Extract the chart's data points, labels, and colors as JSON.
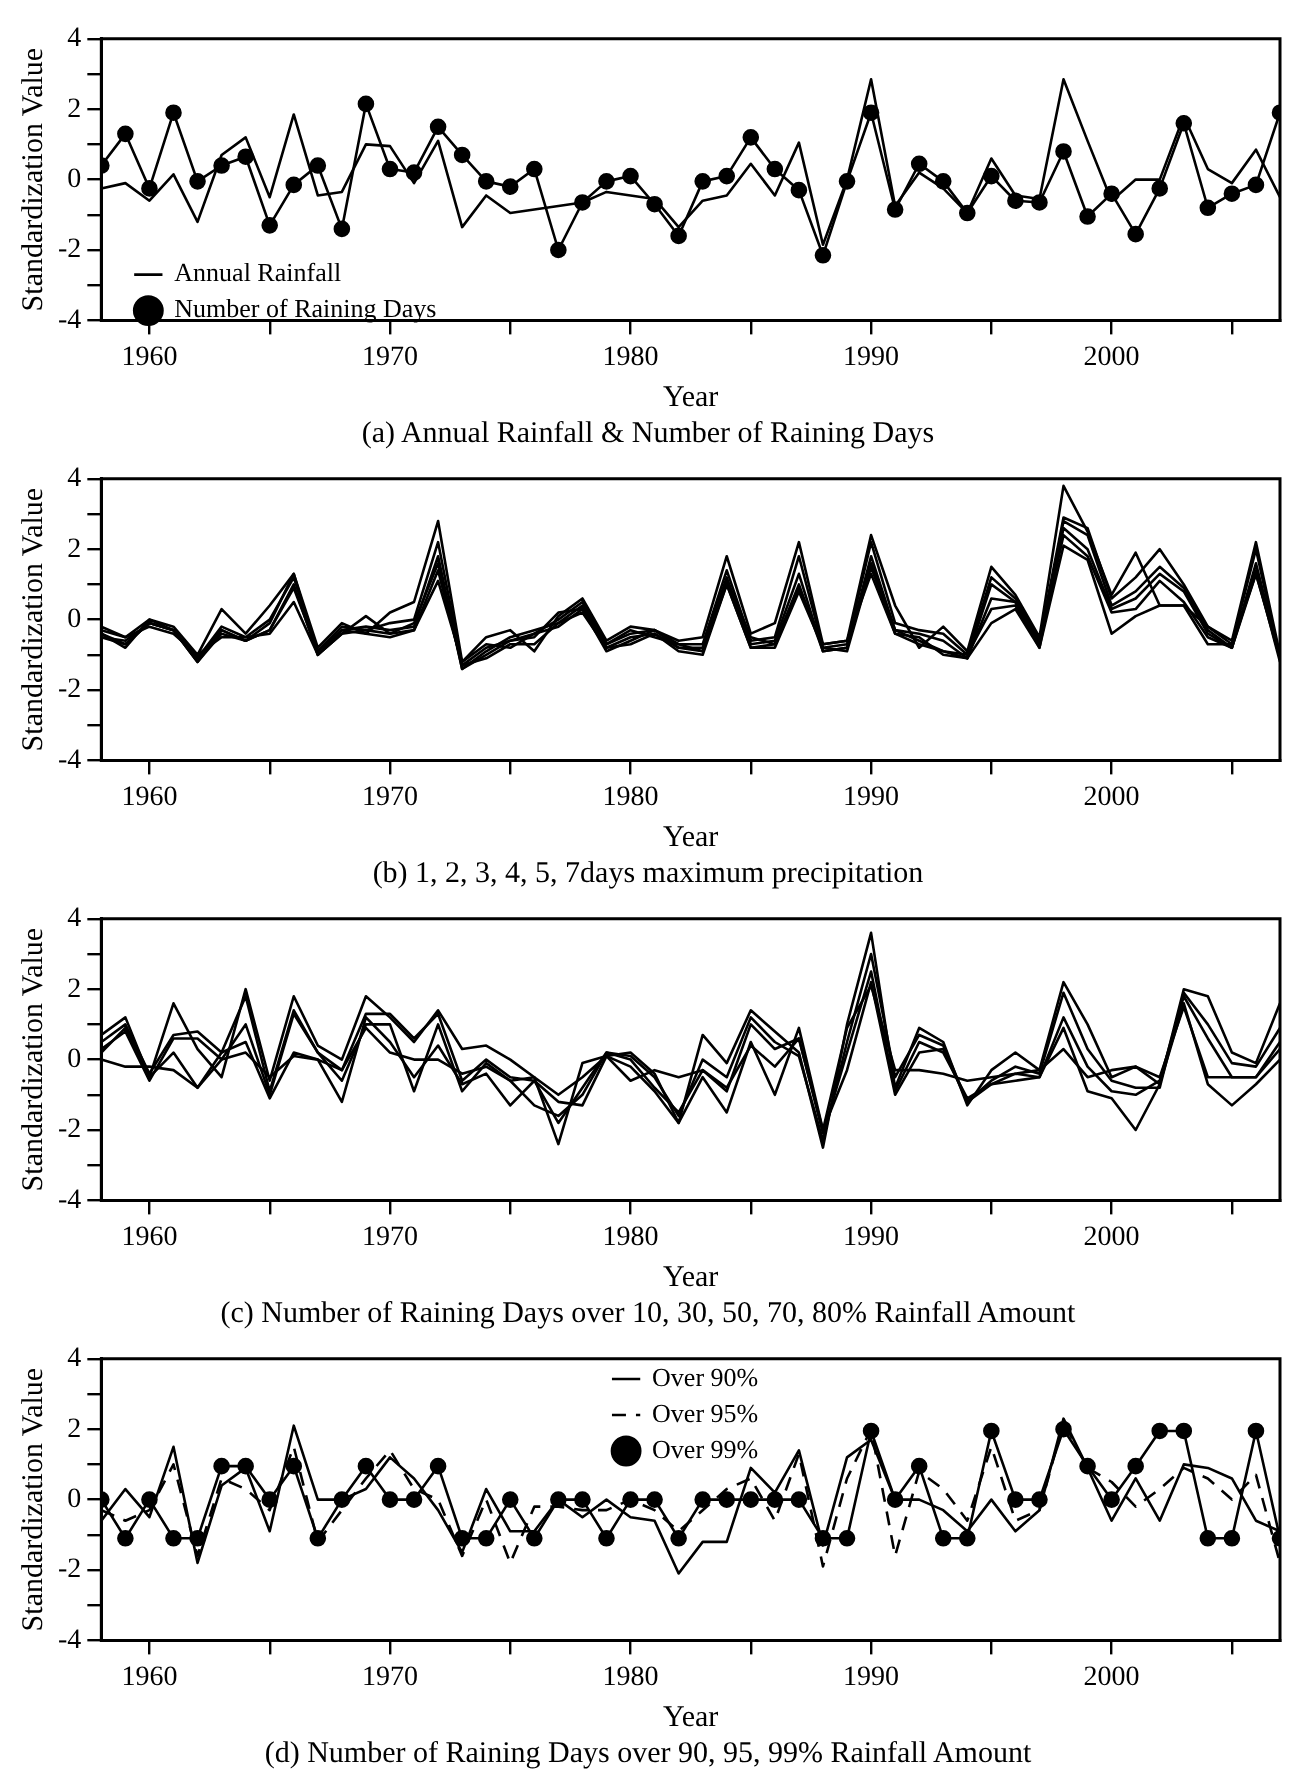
{
  "chart_data": [
    {
      "type": "line",
      "title": "(a) Annual Rainfall & Number of Raining Days",
      "xlabel": "Year",
      "ylabel": "Standardization Value",
      "legend": "bottom left",
      "x": [
        1958,
        1959,
        1960,
        1961,
        1962,
        1963,
        1964,
        1965,
        1966,
        1967,
        1968,
        1969,
        1970,
        1971,
        1972,
        1973,
        1974,
        1975,
        1976,
        1977,
        1978,
        1979,
        1980,
        1981,
        1982,
        1983,
        1984,
        1985,
        1986,
        1987,
        1988,
        1989,
        1990,
        1991,
        1992,
        1993,
        1994,
        1995,
        1996,
        1997,
        1998,
        1999,
        2000,
        2001,
        2002,
        2003,
        2004,
        2005,
        2006,
        2007
      ],
      "xlim": [
        1958,
        2007
      ],
      "xticks": [
        1960,
        {
          "value": 1965,
          "label": null
        },
        1970,
        {
          "value": 1975,
          "label": null
        },
        1980,
        {
          "value": 1985,
          "label": null
        },
        1990,
        {
          "value": 1995,
          "label": null
        },
        2000,
        {
          "value": 2005,
          "label": null
        }
      ],
      "ylim": [
        -4,
        4
      ],
      "yticks": [
        -4,
        {
          "value": -3,
          "label": null
        },
        -2,
        {
          "value": -1,
          "label": null
        },
        0,
        {
          "value": 1,
          "label": null
        },
        2,
        {
          "value": 3,
          "label": null
        },
        4
      ],
      "series": [
        {
          "name": "Annual Rainfall",
          "color": "#000000",
          "marker": "none",
          "line_style": "solid",
          "values": [
            -0.25,
            -0.1,
            -0.6,
            0.15,
            -1.2,
            0.7,
            1.2,
            -0.5,
            1.85,
            -0.45,
            -0.35,
            1.0,
            0.95,
            -0.1,
            1.1,
            -1.35,
            -0.45,
            -0.95,
            -0.85,
            -0.75,
            -0.65,
            -0.35,
            -0.45,
            -0.55,
            -1.35,
            -0.6,
            -0.45,
            0.45,
            -0.45,
            1.05,
            -1.85,
            0.0,
            2.85,
            -0.75,
            0.2,
            -0.25,
            -0.95,
            0.6,
            -0.45,
            -0.55,
            2.85,
            1.1,
            -0.6,
            0.0,
            0.0,
            1.8,
            0.3,
            -0.1,
            0.85,
            -0.5
          ]
        },
        {
          "name": "Number of Raining Days",
          "color": "#000000",
          "marker": "circle",
          "line_style": "solid",
          "values": [
            0.4,
            1.3,
            -0.25,
            1.9,
            -0.05,
            0.4,
            0.65,
            -1.3,
            -0.15,
            0.4,
            -1.4,
            2.15,
            0.3,
            0.2,
            1.5,
            0.7,
            -0.05,
            -0.2,
            0.3,
            -2.0,
            -0.65,
            -0.05,
            0.1,
            -0.7,
            -1.6,
            -0.05,
            0.1,
            1.2,
            0.3,
            -0.3,
            -2.15,
            -0.05,
            1.9,
            -0.85,
            0.45,
            -0.05,
            -0.95,
            0.1,
            -0.6,
            -0.65,
            0.8,
            -1.05,
            -0.4,
            -1.55,
            -0.25,
            1.6,
            -0.8,
            -0.4,
            -0.15,
            1.9
          ]
        }
      ]
    },
    {
      "type": "line",
      "title": "(b) 1, 2, 3, 4, 5, 7days maximum precipitation",
      "xlabel": "Year",
      "ylabel": "Standardization Value",
      "x": [
        1958,
        1959,
        1960,
        1961,
        1962,
        1963,
        1964,
        1965,
        1966,
        1967,
        1968,
        1969,
        1970,
        1971,
        1972,
        1973,
        1974,
        1975,
        1976,
        1977,
        1978,
        1979,
        1980,
        1981,
        1982,
        1983,
        1984,
        1985,
        1986,
        1987,
        1988,
        1989,
        1990,
        1991,
        1992,
        1993,
        1994,
        1995,
        1996,
        1997,
        1998,
        1999,
        2000,
        2001,
        2002,
        2003,
        2004,
        2005,
        2006,
        2007
      ],
      "xlim": [
        1958,
        2007
      ],
      "xticks": [
        1960,
        {
          "value": 1965,
          "label": null
        },
        1970,
        {
          "value": 1975,
          "label": null
        },
        1980,
        {
          "value": 1985,
          "label": null
        },
        1990,
        {
          "value": 1995,
          "label": null
        },
        2000,
        {
          "value": 2005,
          "label": null
        }
      ],
      "ylim": [
        -4,
        4
      ],
      "yticks": [
        -4,
        {
          "value": -3,
          "label": null
        },
        -2,
        {
          "value": -1,
          "label": null
        },
        0,
        {
          "value": 1,
          "label": null
        },
        2,
        {
          "value": 3,
          "label": null
        },
        4
      ],
      "series": [
        {
          "color": "#000000",
          "values": [
            -0.2,
            -0.5,
            0.0,
            -0.2,
            -1.0,
            0.3,
            -0.4,
            0.4,
            1.3,
            -0.8,
            -0.1,
            -0.4,
            0.2,
            0.5,
            2.8,
            -1.2,
            -0.5,
            -0.3,
            -0.9,
            0.1,
            0.6,
            -0.6,
            -0.2,
            -0.3,
            -0.6,
            -0.5,
            1.8,
            -0.4,
            -0.1,
            2.2,
            -0.7,
            -0.6,
            2.4,
            0.4,
            -0.8,
            -0.2,
            -0.9,
            1.5,
            0.7,
            -0.5,
            3.8,
            2.5,
            0.7,
            1.9,
            0.4,
            0.4,
            -0.2,
            -0.6,
            2.2,
            -1.0
          ]
        },
        {
          "color": "#000000",
          "values": [
            -0.4,
            -0.7,
            -0.1,
            -0.3,
            -1.1,
            -0.2,
            -0.5,
            0.0,
            1.2,
            -0.9,
            -0.2,
            -0.3,
            -0.1,
            0.0,
            2.2,
            -1.3,
            -0.8,
            -0.6,
            -0.4,
            0.0,
            0.5,
            -0.7,
            -0.4,
            -0.3,
            -0.7,
            -0.7,
            1.4,
            -0.6,
            -0.5,
            1.8,
            -0.8,
            -0.7,
            2.2,
            -0.1,
            -0.3,
            -0.4,
            -1.0,
            1.2,
            0.6,
            -0.6,
            2.9,
            2.6,
            0.6,
            1.2,
            2.0,
            1.0,
            -0.2,
            -0.7,
            2.0,
            -1.1
          ]
        },
        {
          "color": "#000000",
          "values": [
            -0.5,
            -0.6,
            -0.1,
            -0.3,
            -1.2,
            -0.3,
            -0.6,
            -0.1,
            1.3,
            -1.0,
            -0.3,
            -0.2,
            -0.3,
            -0.2,
            1.8,
            -1.4,
            -0.9,
            -0.5,
            -0.3,
            -0.1,
            0.4,
            -0.8,
            -0.5,
            -0.4,
            -0.8,
            -0.8,
            1.2,
            -0.7,
            -0.6,
            1.3,
            -0.9,
            -0.8,
            1.8,
            -0.3,
            -0.4,
            -0.6,
            -1.1,
            1.0,
            0.5,
            -0.7,
            2.8,
            2.4,
            0.4,
            0.8,
            1.5,
            0.9,
            -0.3,
            -0.8,
            1.6,
            -1.1
          ]
        },
        {
          "color": "#000000",
          "values": [
            -0.4,
            -0.8,
            0.0,
            -0.3,
            -1.2,
            -0.4,
            -0.6,
            -0.3,
            1.0,
            -1.0,
            -0.4,
            0.1,
            -0.4,
            -0.1,
            1.6,
            -1.4,
            -1.0,
            -0.6,
            -0.5,
            0.2,
            0.3,
            -0.9,
            -0.6,
            -0.3,
            -0.8,
            -0.9,
            1.0,
            -0.8,
            -0.7,
            1.0,
            -0.9,
            -0.8,
            1.6,
            -0.3,
            -0.6,
            -0.9,
            -1.1,
            0.6,
            0.5,
            -0.8,
            2.6,
            2.0,
            0.3,
            0.6,
            1.3,
            0.8,
            -0.4,
            -0.8,
            1.4,
            -1.2
          ]
        },
        {
          "color": "#000000",
          "values": [
            -0.5,
            -0.7,
            -0.1,
            -0.3,
            -1.1,
            -0.3,
            -0.6,
            -0.3,
            0.9,
            -0.9,
            -0.3,
            -0.4,
            -0.5,
            -0.3,
            1.4,
            -1.3,
            -1.1,
            -0.7,
            -0.7,
            -0.1,
            0.2,
            -0.8,
            -0.7,
            -0.4,
            -0.9,
            -1.0,
            1.0,
            -0.8,
            -0.8,
            0.8,
            -0.8,
            -0.9,
            1.5,
            -0.4,
            -0.7,
            -0.9,
            -1.0,
            0.3,
            0.4,
            -0.7,
            2.4,
            1.8,
            0.2,
            0.3,
            1.1,
            0.5,
            -0.5,
            -0.8,
            1.3,
            -1.1
          ]
        },
        {
          "color": "#000000",
          "values": [
            -0.3,
            -0.5,
            -0.2,
            -0.4,
            -1.0,
            -0.5,
            -0.5,
            -0.4,
            0.5,
            -1.0,
            -0.4,
            -0.3,
            -0.4,
            -0.3,
            1.1,
            -1.2,
            -0.7,
            -0.8,
            -0.4,
            -0.2,
            0.3,
            -0.7,
            -0.3,
            -0.5,
            -0.7,
            -0.9,
            1.1,
            -0.5,
            -0.7,
            0.9,
            -0.7,
            -0.6,
            1.3,
            -0.4,
            -0.5,
            -1.0,
            -1.1,
            -0.1,
            0.3,
            -0.8,
            2.1,
            1.7,
            -0.4,
            0.1,
            0.4,
            0.4,
            -0.7,
            -0.7,
            1.3,
            -1.0
          ]
        }
      ]
    },
    {
      "type": "line",
      "title": "(c) Number of Raining Days over 10, 30, 50, 70, 80% Rainfall Amount",
      "xlabel": "Year",
      "ylabel": "Standardization Value",
      "x": [
        1958,
        1959,
        1960,
        1961,
        1962,
        1963,
        1964,
        1965,
        1966,
        1967,
        1968,
        1969,
        1970,
        1971,
        1972,
        1973,
        1974,
        1975,
        1976,
        1977,
        1978,
        1979,
        1980,
        1981,
        1982,
        1983,
        1984,
        1985,
        1986,
        1987,
        1988,
        1989,
        1990,
        1991,
        1992,
        1993,
        1994,
        1995,
        1996,
        1997,
        1998,
        1999,
        2000,
        2001,
        2002,
        2003,
        2004,
        2005,
        2006,
        2007
      ],
      "xlim": [
        1958,
        2007
      ],
      "xticks": [
        1960,
        {
          "value": 1965,
          "label": null
        },
        1970,
        {
          "value": 1975,
          "label": null
        },
        1980,
        {
          "value": 1985,
          "label": null
        },
        1990,
        {
          "value": 1995,
          "label": null
        },
        2000,
        {
          "value": 2005,
          "label": null
        }
      ],
      "ylim": [
        -4,
        4
      ],
      "yticks": [
        -4,
        {
          "value": -3,
          "label": null
        },
        -2,
        {
          "value": -1,
          "label": null
        },
        0,
        {
          "value": 1,
          "label": null
        },
        2,
        {
          "value": 3,
          "label": null
        },
        4
      ],
      "series": [
        {
          "color": "#000000",
          "values": [
            0.7,
            1.2,
            -0.5,
            1.6,
            0.3,
            -0.5,
            2.0,
            -0.6,
            1.8,
            0.4,
            0.0,
            1.8,
            1.2,
            0.5,
            1.4,
            0.3,
            0.4,
            0.0,
            -0.5,
            -2.4,
            -0.1,
            0.1,
            0.2,
            -0.4,
            -1.8,
            0.7,
            -0.1,
            1.4,
            0.8,
            0.2,
            -2.5,
            1.0,
            3.6,
            -0.8,
            0.9,
            0.5,
            -1.3,
            -0.3,
            0.2,
            -0.3,
            2.2,
            1.0,
            -0.5,
            -0.2,
            -0.7,
            2.0,
            1.8,
            0.2,
            -0.1,
            1.6
          ]
        },
        {
          "color": "#000000",
          "values": [
            0.5,
            1.0,
            -0.4,
            0.7,
            0.8,
            0.2,
            1.8,
            -0.9,
            1.4,
            0.2,
            -0.3,
            1.3,
            1.3,
            0.6,
            1.3,
            -0.6,
            0.0,
            -0.5,
            -0.6,
            -1.8,
            -0.8,
            0.2,
            0.1,
            -0.5,
            -1.6,
            0.0,
            -0.5,
            1.2,
            0.5,
            0.1,
            -2.3,
            0.5,
            3.0,
            -0.5,
            0.7,
            0.4,
            -1.2,
            -0.6,
            -0.2,
            -0.4,
            1.9,
            0.3,
            -0.6,
            -0.8,
            -0.8,
            1.9,
            1.0,
            -0.1,
            -0.2,
            0.9
          ]
        },
        {
          "color": "#000000",
          "values": [
            0.3,
            0.8,
            -0.6,
            0.6,
            0.6,
            0.0,
            1.0,
            -1.0,
            1.3,
            0.2,
            -0.6,
            1.0,
            1.0,
            -0.9,
            1.0,
            -0.9,
            -0.1,
            -0.6,
            -1.3,
            -1.6,
            -1.0,
            0.2,
            0.0,
            -0.8,
            -1.5,
            -0.3,
            -0.9,
            1.0,
            0.3,
            0.6,
            -2.1,
            0.2,
            2.5,
            -0.9,
            0.5,
            0.2,
            -1.1,
            -0.7,
            -0.4,
            -0.5,
            1.2,
            -0.2,
            -0.9,
            -1.0,
            -0.6,
            1.8,
            0.6,
            -0.5,
            -0.5,
            0.5
          ]
        },
        {
          "color": "#000000",
          "values": [
            0.2,
            0.9,
            -0.5,
            0.2,
            -0.8,
            0.2,
            0.5,
            -1.1,
            0.2,
            0.0,
            -1.2,
            1.2,
            0.5,
            -0.5,
            0.4,
            -0.7,
            -0.4,
            -1.3,
            -0.6,
            -1.2,
            -1.3,
            0.1,
            -0.2,
            -0.9,
            -1.8,
            -0.5,
            -1.5,
            0.5,
            -1.0,
            0.9,
            -2.0,
            -0.3,
            2.2,
            -1.0,
            0.2,
            0.3,
            -1.2,
            -0.7,
            -0.6,
            -0.5,
            0.9,
            -0.9,
            -1.1,
            -2.0,
            -0.7,
            1.6,
            -0.7,
            -1.3,
            -0.7,
            0.0
          ]
        },
        {
          "color": "#000000",
          "values": [
            0.0,
            -0.2,
            -0.2,
            -0.3,
            -0.8,
            0.0,
            0.2,
            -0.5,
            0.1,
            0.0,
            -0.3,
            0.9,
            0.2,
            0.0,
            0.0,
            -0.4,
            -0.2,
            -0.6,
            -0.5,
            -1.0,
            -0.5,
            0.1,
            -0.6,
            -0.3,
            -0.5,
            -0.3,
            -0.8,
            0.4,
            -0.2,
            0.6,
            -2.0,
            0.9,
            2.1,
            -0.3,
            -0.3,
            -0.4,
            -0.6,
            -0.5,
            -0.4,
            -0.3,
            0.3,
            -0.5,
            -0.3,
            -0.2,
            -0.5,
            1.5,
            -0.5,
            -0.5,
            -0.5,
            0.3
          ]
        }
      ]
    },
    {
      "type": "line",
      "title": "(d) Number of Raining Days over 90, 95, 99% Rainfall Amount",
      "xlabel": "Year",
      "ylabel": "Standardization Value",
      "legend": "top",
      "x": [
        1958,
        1959,
        1960,
        1961,
        1962,
        1963,
        1964,
        1965,
        1966,
        1967,
        1968,
        1969,
        1970,
        1971,
        1972,
        1973,
        1974,
        1975,
        1976,
        1977,
        1978,
        1979,
        1980,
        1981,
        1982,
        1983,
        1984,
        1985,
        1986,
        1987,
        1988,
        1989,
        1990,
        1991,
        1992,
        1993,
        1994,
        1995,
        1996,
        1997,
        1998,
        1999,
        2000,
        2001,
        2002,
        2003,
        2004,
        2005,
        2006,
        2007
      ],
      "xlim": [
        1958,
        2007
      ],
      "xticks": [
        1960,
        {
          "value": 1965,
          "label": null
        },
        1970,
        {
          "value": 1975,
          "label": null
        },
        1980,
        {
          "value": 1985,
          "label": null
        },
        1990,
        {
          "value": 1995,
          "label": null
        },
        2000,
        {
          "value": 2005,
          "label": null
        }
      ],
      "ylim": [
        -4,
        4
      ],
      "yticks": [
        -4,
        {
          "value": -3,
          "label": null
        },
        -2,
        {
          "value": -1,
          "label": null
        },
        0,
        {
          "value": 1,
          "label": null
        },
        2,
        {
          "value": 3,
          "label": null
        },
        4
      ],
      "series": [
        {
          "name": "Over 90%",
          "color": "#000000",
          "marker": "none",
          "line_style": "solid",
          "values": [
            -0.6,
            0.3,
            -0.5,
            1.5,
            -1.8,
            0.4,
            0.9,
            -0.9,
            2.1,
            0.0,
            0.0,
            0.3,
            1.2,
            0.6,
            -0.3,
            -1.5,
            0.3,
            -0.9,
            -0.9,
            0.0,
            -0.5,
            0.0,
            -0.5,
            -0.6,
            -2.1,
            -1.2,
            -1.2,
            0.9,
            0.2,
            1.4,
            -1.3,
            1.2,
            1.7,
            0.0,
            0.0,
            -0.3,
            -0.9,
            0.0,
            -0.9,
            -0.3,
            2.3,
            0.9,
            -0.6,
            0.6,
            -0.6,
            1.0,
            0.9,
            0.6,
            -0.6,
            -0.9
          ]
        },
        {
          "name": "Over 95%",
          "color": "#000000",
          "marker": "none",
          "line_style": "dashed",
          "values": [
            -0.3,
            -0.6,
            -0.3,
            1.0,
            -1.6,
            0.6,
            0.3,
            -0.3,
            1.5,
            -1.2,
            -0.3,
            0.6,
            1.4,
            0.3,
            0.0,
            -1.6,
            0.0,
            -1.8,
            -0.2,
            -0.2,
            -0.3,
            -0.3,
            0.0,
            -0.3,
            -0.9,
            -0.3,
            0.3,
            0.6,
            -0.6,
            1.3,
            -1.9,
            0.6,
            2.0,
            -1.6,
            0.8,
            0.3,
            -0.6,
            1.5,
            -0.6,
            -0.3,
            2.2,
            0.9,
            0.5,
            -0.2,
            0.3,
            0.9,
            0.6,
            0.0,
            0.7,
            -1.8
          ]
        },
        {
          "name": "Over 99%",
          "color": "#000000",
          "marker": "circle",
          "line_style": "solid",
          "values": [
            0.0,
            -1.1,
            0.0,
            -1.1,
            -1.1,
            0.95,
            0.95,
            0.0,
            0.95,
            -1.1,
            0.0,
            0.95,
            0.0,
            0.0,
            0.95,
            -1.1,
            -1.1,
            0.0,
            -1.1,
            0.0,
            0.0,
            -1.1,
            0.0,
            0.0,
            -1.1,
            0.0,
            0.0,
            0.0,
            0.0,
            0.0,
            -1.1,
            -1.1,
            1.95,
            0.0,
            0.95,
            -1.1,
            -1.1,
            1.95,
            0.0,
            0.0,
            2.0,
            0.95,
            0.0,
            0.95,
            1.95,
            1.95,
            -1.1,
            -1.1,
            1.95,
            -1.1
          ]
        }
      ]
    }
  ]
}
